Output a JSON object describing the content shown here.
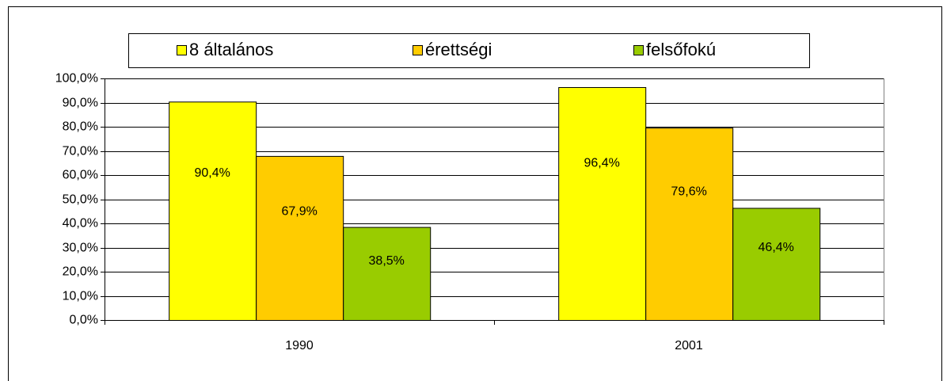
{
  "chart_data": {
    "type": "bar",
    "categories": [
      "1990",
      "2001"
    ],
    "series": [
      {
        "name": "8 általános",
        "color": "#ffff00",
        "values": [
          90.4,
          96.4
        ],
        "value_labels": [
          "90,4%",
          "96,4%"
        ]
      },
      {
        "name": "érettségi",
        "color": "#ffcc00",
        "values": [
          67.9,
          79.6
        ],
        "value_labels": [
          "67,9%",
          "79,6%"
        ]
      },
      {
        "name": "felsőfokú",
        "color": "#99cc00",
        "values": [
          38.5,
          46.4
        ],
        "value_labels": [
          "38,5%",
          "46,4%"
        ]
      }
    ],
    "ylim": [
      0,
      100
    ],
    "yticks": [
      {
        "value": 0,
        "label": "0,0%"
      },
      {
        "value": 10,
        "label": "10,0%"
      },
      {
        "value": 20,
        "label": "20,0%"
      },
      {
        "value": 30,
        "label": "30,0%"
      },
      {
        "value": 40,
        "label": "40,0%"
      },
      {
        "value": 50,
        "label": "50,0%"
      },
      {
        "value": 60,
        "label": "60,0%"
      },
      {
        "value": 70,
        "label": "70,0%"
      },
      {
        "value": 80,
        "label": "80,0%"
      },
      {
        "value": 90,
        "label": "90,0%"
      },
      {
        "value": 100,
        "label": "100,0%"
      }
    ],
    "grid": true,
    "legend": "top"
  }
}
